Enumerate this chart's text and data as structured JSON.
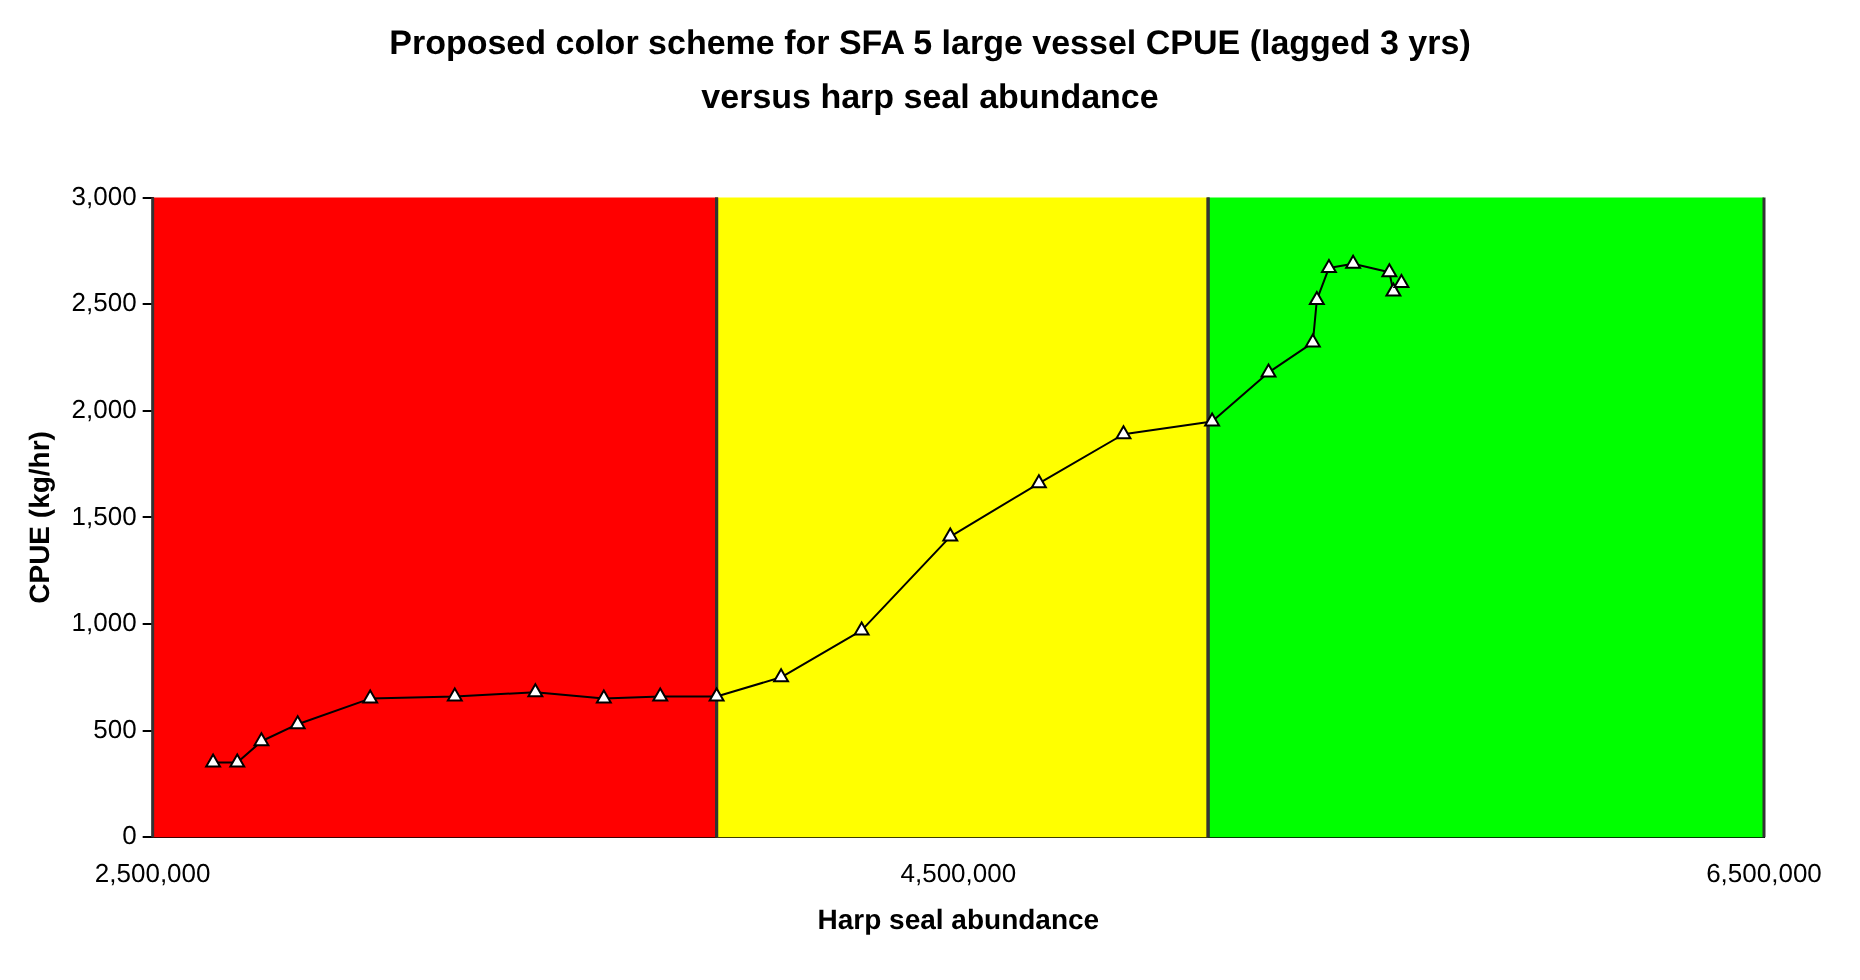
{
  "chart_data": {
    "type": "line",
    "title": "Proposed color scheme for SFA 5 large vessel CPUE (lagged 3 yrs) versus harp seal abundance",
    "xlabel": "Harp seal abundance",
    "ylabel": "CPUE (kg/hr)",
    "x": [
      2650000,
      2710000,
      2770000,
      2860000,
      3040000,
      3250000,
      3450000,
      3620000,
      3760000,
      3900000,
      4060000,
      4260000,
      4480000,
      4700000,
      4910000,
      5130000,
      5270000,
      5380000,
      5390000,
      5420000,
      5480000,
      5570000,
      5580000,
      5600000
    ],
    "series": [
      {
        "color": "#000000",
        "values": [
          350,
          350,
          450,
          530,
          650,
          660,
          680,
          650,
          660,
          660,
          750,
          970,
          1410,
          1660,
          1890,
          1950,
          2180,
          2320,
          2520,
          2670,
          2690,
          2650,
          2560,
          2600
        ]
      }
    ],
    "xlim": [
      2500000,
      6500000
    ],
    "xticks": [
      {
        "value": 2500000,
        "label": "2,500,000"
      },
      {
        "value": 4500000,
        "label": "4,500,000"
      },
      {
        "value": 6500000,
        "label": "6,500,000"
      }
    ],
    "ylim": [
      0,
      3000
    ],
    "yticks": [
      0,
      500,
      {
        "value": 1000,
        "label": "1,000"
      },
      {
        "value": 1500,
        "label": "1,500"
      },
      {
        "value": 2000,
        "label": "2,000"
      },
      {
        "value": 2500,
        "label": "2,500"
      },
      {
        "value": 3000,
        "label": "3,000"
      }
    ],
    "bands": [
      {
        "axis": "x",
        "from": 2500000,
        "to": 3900000,
        "color": "#ff0000"
      },
      {
        "axis": "x",
        "from": 3900000,
        "to": 5120000,
        "color": "#ffff00"
      },
      {
        "axis": "x",
        "from": 5120000,
        "to": 6500000,
        "color": "#00ff00"
      }
    ],
    "grid": false,
    "legend": false,
    "marker": "triangle",
    "line_style": "solid"
  }
}
